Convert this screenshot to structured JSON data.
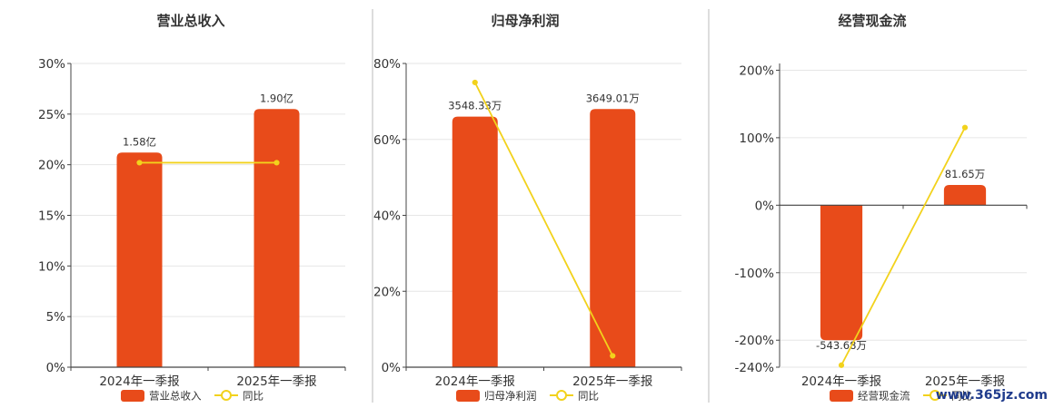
{
  "watermark": "www.365jz.com",
  "colors": {
    "bar": "#e84b1a",
    "line": "#f2d21c",
    "grid": "#e6e6e6",
    "axis": "#444444",
    "divider": "#bbbbbb"
  },
  "legend_line_label": "同比",
  "chart_data": [
    {
      "type": "bar",
      "title": "营业总收入",
      "categories": [
        "2024年一季报",
        "2025年一季报"
      ],
      "y_ticks": [
        "0%",
        "5%",
        "10%",
        "15%",
        "20%",
        "25%",
        "30%"
      ],
      "ylim": [
        0,
        30
      ],
      "series": [
        {
          "name": "营业总收入",
          "kind": "bar",
          "values": [
            21.2,
            25.5
          ],
          "labels": [
            "1.58亿",
            "1.90亿"
          ]
        },
        {
          "name": "同比",
          "kind": "line",
          "values": [
            20.2,
            20.2
          ]
        }
      ],
      "grid": true,
      "legend": "bottom"
    },
    {
      "type": "bar",
      "title": "归母净利润",
      "categories": [
        "2024年一季报",
        "2025年一季报"
      ],
      "y_ticks": [
        "0%",
        "20%",
        "40%",
        "60%",
        "80%"
      ],
      "ylim": [
        0,
        80
      ],
      "series": [
        {
          "name": "归母净利润",
          "kind": "bar",
          "values": [
            66,
            68
          ],
          "labels": [
            "3548.33万",
            "3649.01万"
          ]
        },
        {
          "name": "同比",
          "kind": "line",
          "values": [
            75,
            3
          ]
        }
      ],
      "grid": true,
      "legend": "bottom"
    },
    {
      "type": "bar",
      "title": "经营现金流",
      "categories": [
        "2024年一季报",
        "2025年一季报"
      ],
      "y_ticks": [
        "-240%",
        "-200%",
        "-100%",
        "0%",
        "100%",
        "200%"
      ],
      "ylim": [
        -240,
        210
      ],
      "series": [
        {
          "name": "经营现金流",
          "kind": "bar",
          "values": [
            -200,
            30
          ],
          "labels": [
            "-543.68万",
            "81.65万"
          ]
        },
        {
          "name": "同比",
          "kind": "line",
          "values": [
            -237,
            115
          ]
        }
      ],
      "grid": true,
      "legend": "bottom"
    }
  ]
}
